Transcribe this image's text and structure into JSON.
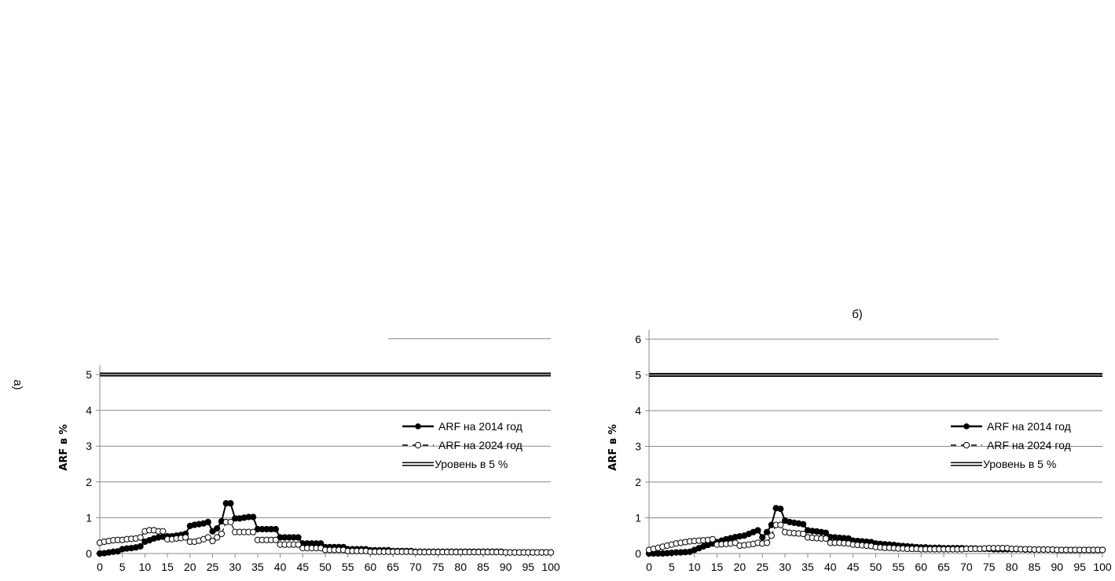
{
  "chart_data": [
    {
      "type": "line",
      "panel_label": "а)",
      "ylabel": "ARF в %",
      "xlabel": "",
      "xlim": [
        0,
        100
      ],
      "ylim": [
        0,
        6
      ],
      "yticks": [
        0,
        1,
        2,
        3,
        4,
        5
      ],
      "xticks": [
        0,
        5,
        10,
        15,
        20,
        25,
        30,
        35,
        40,
        45,
        50,
        55,
        60,
        65,
        70,
        75,
        80,
        85,
        90,
        95,
        100
      ],
      "grid": true,
      "legend_placement": "right",
      "series": [
        {
          "name": "ARF на 2014 год",
          "style": "solid-filled-markers",
          "color": "#000000",
          "values": [
            0,
            0.01,
            0.03,
            0.05,
            0.06,
            0.12,
            0.14,
            0.15,
            0.17,
            0.2,
            0.33,
            0.37,
            0.42,
            0.45,
            0.47,
            0.48,
            0.48,
            0.5,
            0.52,
            0.55,
            0.77,
            0.8,
            0.82,
            0.84,
            0.88,
            0.62,
            0.7,
            0.9,
            1.4,
            1.4,
            0.98,
            0.98,
            1.0,
            1.02,
            1.02,
            0.68,
            0.68,
            0.68,
            0.68,
            0.68,
            0.45,
            0.45,
            0.45,
            0.45,
            0.45,
            0.28,
            0.28,
            0.28,
            0.28,
            0.28,
            0.18,
            0.18,
            0.18,
            0.18,
            0.18,
            0.12,
            0.12,
            0.12,
            0.12,
            0.12,
            0.09,
            0.09,
            0.09,
            0.09,
            0.09,
            0.07,
            0.07,
            0.07,
            0.07,
            0.07,
            0.05,
            0.05,
            0.05,
            0.05,
            0.05,
            0.05,
            0.05,
            0.05,
            0.05,
            0.05,
            0.05,
            0.05,
            0.05,
            0.05,
            0.05,
            0.05,
            0.05,
            0.05,
            0.05,
            0.05,
            0.03,
            0.03,
            0.03,
            0.03,
            0.03,
            0.03,
            0.03,
            0.03,
            0.03,
            0.03,
            0.03
          ]
        },
        {
          "name": "ARF на 2024 год",
          "style": "dashed-open-markers",
          "color": "#000000",
          "values": [
            0.3,
            0.33,
            0.35,
            0.37,
            0.38,
            0.38,
            0.4,
            0.41,
            0.42,
            0.45,
            0.62,
            0.65,
            0.65,
            0.62,
            0.62,
            0.4,
            0.4,
            0.42,
            0.43,
            0.45,
            0.33,
            0.33,
            0.36,
            0.4,
            0.45,
            0.35,
            0.45,
            0.55,
            0.88,
            0.88,
            0.6,
            0.6,
            0.6,
            0.6,
            0.6,
            0.38,
            0.38,
            0.38,
            0.38,
            0.38,
            0.25,
            0.25,
            0.25,
            0.25,
            0.25,
            0.15,
            0.15,
            0.15,
            0.15,
            0.15,
            0.1,
            0.1,
            0.1,
            0.1,
            0.1,
            0.07,
            0.07,
            0.07,
            0.07,
            0.07,
            0.05,
            0.05,
            0.05,
            0.05,
            0.05,
            0.05,
            0.05,
            0.05,
            0.05,
            0.05,
            0.04,
            0.04,
            0.04,
            0.04,
            0.04,
            0.04,
            0.04,
            0.04,
            0.04,
            0.04,
            0.04,
            0.04,
            0.04,
            0.04,
            0.04,
            0.04,
            0.04,
            0.04,
            0.04,
            0.04,
            0.03,
            0.03,
            0.03,
            0.03,
            0.03,
            0.03,
            0.03,
            0.03,
            0.03,
            0.03,
            0.03
          ]
        },
        {
          "name": "Уровень в 5 %",
          "style": "double-line",
          "color": "#808080",
          "constant": 5
        }
      ]
    },
    {
      "type": "line",
      "panel_label": "б)",
      "ylabel": "ARF в %",
      "xlabel": "",
      "xlim": [
        0,
        100
      ],
      "ylim": [
        0,
        6
      ],
      "yticks": [
        0,
        1,
        2,
        3,
        4,
        5,
        6
      ],
      "xticks": [
        0,
        5,
        10,
        15,
        20,
        25,
        30,
        35,
        40,
        45,
        50,
        55,
        60,
        65,
        70,
        75,
        80,
        85,
        90,
        95,
        100
      ],
      "grid": true,
      "legend_placement": "right",
      "series": [
        {
          "name": "ARF на 2014 год",
          "style": "solid-filled-markers",
          "color": "#000000",
          "values": [
            0,
            0,
            0,
            0,
            0.01,
            0.02,
            0.03,
            0.03,
            0.04,
            0.05,
            0.1,
            0.15,
            0.2,
            0.24,
            0.28,
            0.32,
            0.36,
            0.4,
            0.43,
            0.46,
            0.48,
            0.5,
            0.55,
            0.6,
            0.65,
            0.45,
            0.6,
            0.8,
            1.27,
            1.25,
            0.92,
            0.88,
            0.86,
            0.84,
            0.82,
            0.65,
            0.63,
            0.62,
            0.6,
            0.58,
            0.46,
            0.45,
            0.44,
            0.43,
            0.42,
            0.36,
            0.35,
            0.34,
            0.33,
            0.32,
            0.28,
            0.27,
            0.26,
            0.25,
            0.24,
            0.22,
            0.21,
            0.2,
            0.19,
            0.18,
            0.17,
            0.17,
            0.16,
            0.16,
            0.16,
            0.15,
            0.15,
            0.15,
            0.15,
            0.15,
            0.14,
            0.14,
            0.14,
            0.13,
            0.13,
            0.13,
            0.12,
            0.12,
            0.12,
            0.12,
            0.12,
            0.12,
            0.12,
            0.11,
            0.11,
            0.11,
            0.11,
            0.11,
            0.11,
            0.11,
            0.1,
            0.1,
            0.1,
            0.1,
            0.1,
            0.1,
            0.1,
            0.1,
            0.1,
            0.1,
            0.1
          ]
        },
        {
          "name": "ARF на 2024 год",
          "style": "dashed-open-markers",
          "color": "#000000",
          "values": [
            0.1,
            0.13,
            0.16,
            0.19,
            0.22,
            0.25,
            0.28,
            0.3,
            0.32,
            0.34,
            0.35,
            0.36,
            0.37,
            0.38,
            0.4,
            0.25,
            0.26,
            0.27,
            0.28,
            0.3,
            0.22,
            0.23,
            0.25,
            0.27,
            0.3,
            0.28,
            0.3,
            0.5,
            0.8,
            0.8,
            0.6,
            0.58,
            0.57,
            0.56,
            0.55,
            0.45,
            0.44,
            0.43,
            0.42,
            0.42,
            0.3,
            0.3,
            0.3,
            0.29,
            0.28,
            0.25,
            0.24,
            0.23,
            0.22,
            0.21,
            0.18,
            0.17,
            0.16,
            0.16,
            0.15,
            0.14,
            0.14,
            0.13,
            0.13,
            0.13,
            0.12,
            0.12,
            0.12,
            0.12,
            0.12,
            0.12,
            0.12,
            0.12,
            0.12,
            0.12,
            0.13,
            0.13,
            0.13,
            0.13,
            0.14,
            0.15,
            0.15,
            0.15,
            0.15,
            0.15,
            0.13,
            0.13,
            0.12,
            0.12,
            0.12,
            0.11,
            0.11,
            0.11,
            0.11,
            0.11,
            0.1,
            0.1,
            0.1,
            0.1,
            0.1,
            0.1,
            0.1,
            0.1,
            0.1,
            0.1,
            0.1
          ]
        },
        {
          "name": "Уровень в 5 %",
          "style": "double-line",
          "color": "#808080",
          "constant": 5
        }
      ]
    }
  ]
}
